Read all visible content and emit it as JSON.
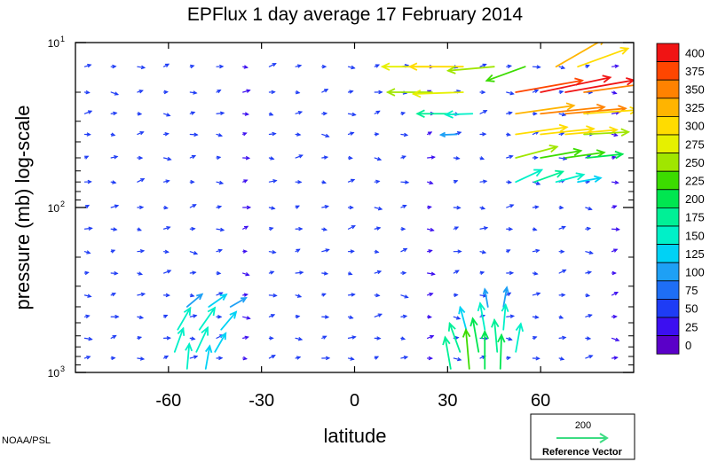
{
  "chart_data": {
    "type": "vector-field",
    "title": "EPFlux  1 day average  17 February  2014",
    "xlabel": "latitude",
    "ylabel": "pressure (mb)  log-scale",
    "x_range": [
      -90,
      90
    ],
    "x_ticks": [
      {
        "value": -60,
        "label": "-60"
      },
      {
        "value": -30,
        "label": "-30"
      },
      {
        "value": 0,
        "label": "0"
      },
      {
        "value": 30,
        "label": "30"
      },
      {
        "value": 60,
        "label": "60"
      }
    ],
    "y_scale": "log",
    "y_range_mb": [
      1000,
      10
    ],
    "y_ticks": [
      {
        "value": 10,
        "base": "10",
        "exp": "1"
      },
      {
        "value": 100,
        "base": "10",
        "exp": "2"
      },
      {
        "value": 1000,
        "base": "10",
        "exp": "3"
      }
    ],
    "colorbar": {
      "labels": [
        "0",
        "25",
        "50",
        "75",
        "100",
        "125",
        "150",
        "175",
        "200",
        "225",
        "250",
        "275",
        "300",
        "325",
        "350",
        "375",
        "400"
      ],
      "colors": [
        "#5a00c8",
        "#3c0ff0",
        "#1e3cf5",
        "#1e6ef5",
        "#1ea0f5",
        "#00d2f5",
        "#00f0c8",
        "#00f096",
        "#00e650",
        "#3cdc00",
        "#a0e600",
        "#e6f000",
        "#ffdc00",
        "#ffb400",
        "#ff8200",
        "#ff4600",
        "#f01414"
      ]
    },
    "reference_vector": {
      "magnitude": "200",
      "label": "Reference Vector",
      "color": "#3cdc82"
    },
    "credit": "NOAA/PSL",
    "vectors": [
      {
        "lat": 25,
        "p": 14,
        "mag": 280,
        "dir": 180
      },
      {
        "lat": 35,
        "p": 14,
        "mag": 300,
        "dir": 180
      },
      {
        "lat": 45,
        "p": 14,
        "mag": 260,
        "dir": 185
      },
      {
        "lat": 55,
        "p": 14,
        "mag": 230,
        "dir": 200
      },
      {
        "lat": 65,
        "p": 14,
        "mag": 320,
        "dir": 30
      },
      {
        "lat": 72,
        "p": 14,
        "mag": 300,
        "dir": 20
      },
      {
        "lat": 25,
        "p": 20,
        "mag": 250,
        "dir": 180
      },
      {
        "lat": 35,
        "p": 20,
        "mag": 280,
        "dir": 182
      },
      {
        "lat": 52,
        "p": 20,
        "mag": 380,
        "dir": 10
      },
      {
        "lat": 60,
        "p": 20,
        "mag": 400,
        "dir": 12
      },
      {
        "lat": 68,
        "p": 20,
        "mag": 390,
        "dir": 10
      },
      {
        "lat": 74,
        "p": 20,
        "mag": 350,
        "dir": 8
      },
      {
        "lat": 30,
        "p": 27,
        "mag": 170,
        "dir": 180
      },
      {
        "lat": 38,
        "p": 27,
        "mag": 150,
        "dir": 182
      },
      {
        "lat": 52,
        "p": 27,
        "mag": 330,
        "dir": 8
      },
      {
        "lat": 60,
        "p": 27,
        "mag": 360,
        "dir": 6
      },
      {
        "lat": 68,
        "p": 27,
        "mag": 340,
        "dir": 5
      },
      {
        "lat": 74,
        "p": 27,
        "mag": 300,
        "dir": 4
      },
      {
        "lat": 33,
        "p": 36,
        "mag": 90,
        "dir": 182
      },
      {
        "lat": 52,
        "p": 36,
        "mag": 290,
        "dir": 8
      },
      {
        "lat": 60,
        "p": 36,
        "mag": 300,
        "dir": 6
      },
      {
        "lat": 68,
        "p": 36,
        "mag": 290,
        "dir": 5
      },
      {
        "lat": 74,
        "p": 36,
        "mag": 250,
        "dir": 3
      },
      {
        "lat": 52,
        "p": 50,
        "mag": 240,
        "dir": 15
      },
      {
        "lat": 60,
        "p": 50,
        "mag": 230,
        "dir": 10
      },
      {
        "lat": 68,
        "p": 50,
        "mag": 220,
        "dir": 8
      },
      {
        "lat": 75,
        "p": 50,
        "mag": 200,
        "dir": 6
      },
      {
        "lat": 52,
        "p": 70,
        "mag": 160,
        "dir": 25
      },
      {
        "lat": 58,
        "p": 70,
        "mag": 170,
        "dir": 20
      },
      {
        "lat": 65,
        "p": 70,
        "mag": 160,
        "dir": 15
      },
      {
        "lat": 72,
        "p": 70,
        "mag": 130,
        "dir": 10
      },
      {
        "lat": -54,
        "p": 400,
        "mag": 110,
        "dir": 40
      },
      {
        "lat": -47,
        "p": 400,
        "mag": 120,
        "dir": 35
      },
      {
        "lat": -40,
        "p": 400,
        "mag": 100,
        "dir": 30
      },
      {
        "lat": -57,
        "p": 550,
        "mag": 140,
        "dir": 60
      },
      {
        "lat": -50,
        "p": 550,
        "mag": 150,
        "dir": 55
      },
      {
        "lat": -43,
        "p": 550,
        "mag": 130,
        "dir": 50
      },
      {
        "lat": -58,
        "p": 750,
        "mag": 140,
        "dir": 70
      },
      {
        "lat": -51,
        "p": 750,
        "mag": 150,
        "dir": 65
      },
      {
        "lat": -45,
        "p": 750,
        "mag": 120,
        "dir": 60
      },
      {
        "lat": -54,
        "p": 950,
        "mag": 140,
        "dir": 85
      },
      {
        "lat": -48,
        "p": 950,
        "mag": 130,
        "dir": 80
      },
      {
        "lat": 43,
        "p": 400,
        "mag": 100,
        "dir": 100
      },
      {
        "lat": 48,
        "p": 400,
        "mag": 110,
        "dir": 80
      },
      {
        "lat": 36,
        "p": 550,
        "mag": 130,
        "dir": 105
      },
      {
        "lat": 42,
        "p": 550,
        "mag": 150,
        "dir": 100
      },
      {
        "lat": 48,
        "p": 550,
        "mag": 140,
        "dir": 85
      },
      {
        "lat": 34,
        "p": 750,
        "mag": 170,
        "dir": 110
      },
      {
        "lat": 40,
        "p": 750,
        "mag": 190,
        "dir": 100
      },
      {
        "lat": 46,
        "p": 750,
        "mag": 180,
        "dir": 95
      },
      {
        "lat": 52,
        "p": 750,
        "mag": 160,
        "dir": 80
      },
      {
        "lat": 31,
        "p": 950,
        "mag": 180,
        "dir": 100
      },
      {
        "lat": 37,
        "p": 950,
        "mag": 220,
        "dir": 95
      },
      {
        "lat": 42,
        "p": 950,
        "mag": 210,
        "dir": 90
      },
      {
        "lat": 47,
        "p": 950,
        "mag": 190,
        "dir": 88
      }
    ]
  }
}
